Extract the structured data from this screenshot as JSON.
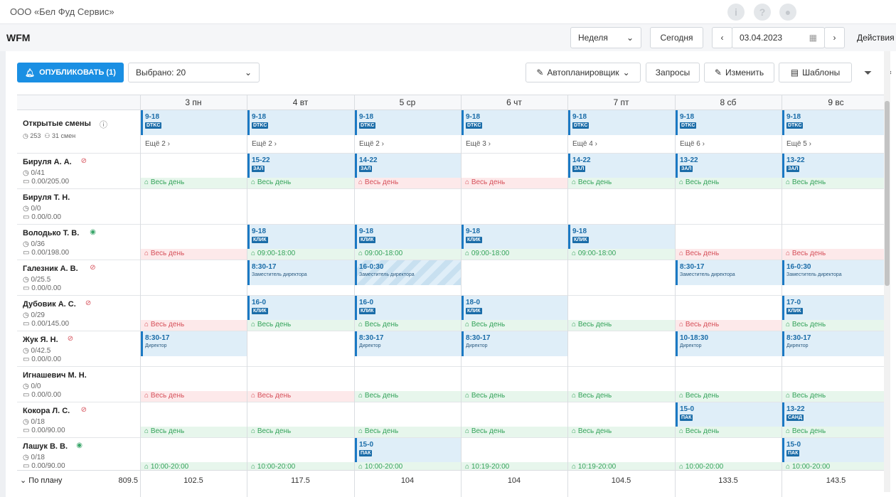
{
  "org": "ООО «Бел Фуд Сервис»",
  "app": "WFM",
  "header": {
    "view": "Неделя",
    "today": "Сегодня",
    "date": "03.04.2023",
    "actions": "Действия"
  },
  "toolbar": {
    "publish": "ОПУБЛИКОВАТЬ (1)",
    "selected": "Выбрано: 20",
    "autoplanner": "Автопланировщик",
    "requests": "Запросы",
    "change": "Изменить",
    "templates": "Шаблоны"
  },
  "days": [
    "3 пн",
    "4 вт",
    "5 ср",
    "6 чт",
    "7 пт",
    "8 сб",
    "9 вс"
  ],
  "open_shifts": {
    "title": "Открытые смены",
    "hours": "253",
    "count": "31 смен",
    "time": "9-18",
    "tag": "DTKC",
    "more": [
      "Ещё 2",
      "Ещё 2",
      "Ещё 2",
      "Ещё 3",
      "Ещё 4",
      "Ещё 6",
      "Ещё 5"
    ]
  },
  "all_day": "Весь день",
  "employees": [
    {
      "name": "Бируля А. А.",
      "icon": "eye-off",
      "hours": "0/41",
      "money": "0.00/205.00",
      "cells": [
        {
          "st": "g"
        },
        {
          "t": "15-22",
          "tag": "ЗАЛ",
          "st": "g"
        },
        {
          "t": "14-22",
          "tag": "ЗАЛ",
          "st": "r"
        },
        {
          "st": "r"
        },
        {
          "t": "14-22",
          "tag": "ЗАЛ",
          "st": "g"
        },
        {
          "t": "13-22",
          "tag": "ЗАЛ",
          "st": "g"
        },
        {
          "t": "13-22",
          "tag": "ЗАЛ",
          "st": "g"
        }
      ]
    },
    {
      "name": "Бируля Т. Н.",
      "icon": "",
      "hours": "0/0",
      "money": "0.00/0.00",
      "cells": [
        {},
        {},
        {},
        {},
        {},
        {},
        {}
      ]
    },
    {
      "name": "Володько Т. В.",
      "icon": "eye",
      "hours": "0/36",
      "money": "0.00/198.00",
      "cells": [
        {
          "st": "r"
        },
        {
          "t": "9-18",
          "tag": "КЛИК",
          "st": "g",
          "lbl": "09:00-18:00"
        },
        {
          "t": "9-18",
          "tag": "КЛИК",
          "st": "g",
          "lbl": "09:00-18:00"
        },
        {
          "t": "9-18",
          "tag": "КЛИК",
          "st": "g",
          "lbl": "09:00-18:00"
        },
        {
          "t": "9-18",
          "tag": "КЛИК",
          "st": "g",
          "lbl": "09:00-18:00"
        },
        {
          "st": "r"
        },
        {
          "st": "r"
        }
      ]
    },
    {
      "name": "Галезник А. В.",
      "icon": "eye-off",
      "hours": "0/25.5",
      "money": "0.00/0.00",
      "cells": [
        {},
        {
          "t": "8:30-17",
          "role": "Заместитель директора"
        },
        {
          "t": "16-0:30",
          "role": "Заместитель директора",
          "striped": true
        },
        {},
        {},
        {
          "t": "8:30-17",
          "role": "Заместитель директора"
        },
        {
          "t": "16-0:30",
          "role": "Заместитель директора"
        }
      ]
    },
    {
      "name": "Дубовик А. С.",
      "icon": "eye-off",
      "hours": "0/29",
      "money": "0.00/145.00",
      "cells": [
        {
          "st": "r"
        },
        {
          "t": "16-0",
          "tag": "КЛИК",
          "st": "g"
        },
        {
          "t": "16-0",
          "tag": "КЛИК",
          "st": "g"
        },
        {
          "t": "18-0",
          "tag": "КЛИК",
          "st": "g"
        },
        {
          "st": "g"
        },
        {
          "st": "r"
        },
        {
          "t": "17-0",
          "tag": "КЛИК",
          "st": "g"
        }
      ]
    },
    {
      "name": "Жук Я. Н.",
      "icon": "eye-off",
      "hours": "0/42.5",
      "money": "0.00/0.00",
      "cells": [
        {
          "t": "8:30-17",
          "role": "Директор"
        },
        {},
        {
          "t": "8:30-17",
          "role": "Директор"
        },
        {
          "t": "8:30-17",
          "role": "Директор"
        },
        {},
        {
          "t": "10-18:30",
          "role": "Директор"
        },
        {
          "t": "8:30-17",
          "role": "Директор"
        }
      ]
    },
    {
      "name": "Игнашевич М. Н.",
      "icon": "",
      "hours": "0/0",
      "money": "0.00/0.00",
      "cells": [
        {
          "st": "r"
        },
        {
          "st": "r"
        },
        {
          "st": "g"
        },
        {
          "st": "g"
        },
        {
          "st": "g"
        },
        {
          "st": "g"
        },
        {
          "st": "g"
        }
      ]
    },
    {
      "name": "Кокора Л. С.",
      "icon": "eye-off",
      "hours": "0/18",
      "money": "0.00/90.00",
      "cells": [
        {
          "st": "g"
        },
        {
          "st": "g"
        },
        {
          "st": "g"
        },
        {
          "st": "g"
        },
        {
          "st": "g"
        },
        {
          "t": "15-0",
          "tag": "ПАК",
          "st": "g"
        },
        {
          "t": "13-22",
          "tag": "САНД",
          "st": "g"
        }
      ]
    },
    {
      "name": "Лашук В. В.",
      "icon": "eye",
      "hours": "0/18",
      "money": "0.00/90.00",
      "cells": [
        {
          "st": "g",
          "lbl": "10:00-20:00"
        },
        {
          "st": "g",
          "lbl": "10:00-20:00"
        },
        {
          "t": "15-0",
          "tag": "ПАК",
          "st": "g",
          "lbl": "10:00-20:00"
        },
        {
          "st": "g",
          "lbl": "10:19-20:00"
        },
        {
          "st": "g",
          "lbl": "10:19-20:00"
        },
        {
          "st": "g",
          "lbl": "10:00-20:00"
        },
        {
          "t": "15-0",
          "tag": "ПАК",
          "st": "g",
          "lbl": "10:00-20:00"
        }
      ]
    }
  ],
  "footer": {
    "label": "По плану",
    "total": "809.5",
    "days": [
      "102.5",
      "117.5",
      "104",
      "104",
      "104.5",
      "133.5",
      "143.5"
    ]
  }
}
